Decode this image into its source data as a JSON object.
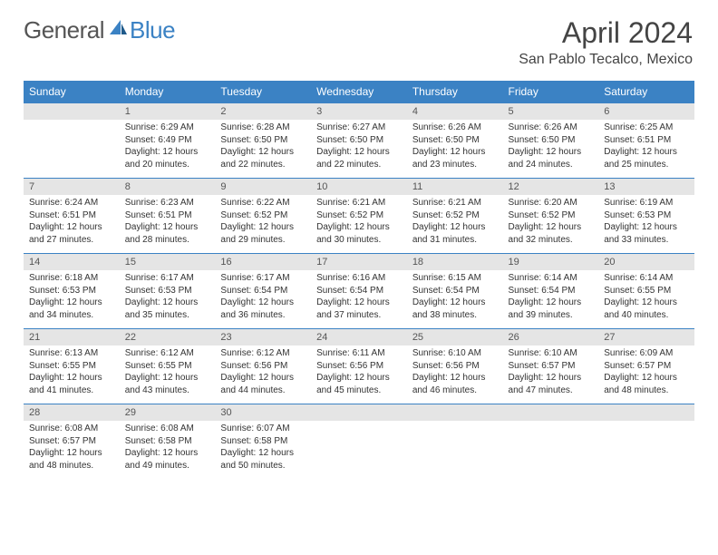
{
  "logo": {
    "general": "General",
    "blue": "Blue"
  },
  "title": "April 2024",
  "location": "San Pablo Tecalco, Mexico",
  "colors": {
    "header_bg": "#3b82c4",
    "header_text": "#ffffff",
    "daynum_bg": "#e5e5e5",
    "body_text": "#333333",
    "logo_blue": "#3b82c4",
    "logo_gray": "#555555"
  },
  "day_labels": [
    "Sunday",
    "Monday",
    "Tuesday",
    "Wednesday",
    "Thursday",
    "Friday",
    "Saturday"
  ],
  "weeks": [
    {
      "nums": [
        "",
        "1",
        "2",
        "3",
        "4",
        "5",
        "6"
      ],
      "cells": [
        null,
        {
          "sunrise": "6:29 AM",
          "sunset": "6:49 PM",
          "daylight": "12 hours and 20 minutes."
        },
        {
          "sunrise": "6:28 AM",
          "sunset": "6:50 PM",
          "daylight": "12 hours and 22 minutes."
        },
        {
          "sunrise": "6:27 AM",
          "sunset": "6:50 PM",
          "daylight": "12 hours and 22 minutes."
        },
        {
          "sunrise": "6:26 AM",
          "sunset": "6:50 PM",
          "daylight": "12 hours and 23 minutes."
        },
        {
          "sunrise": "6:26 AM",
          "sunset": "6:50 PM",
          "daylight": "12 hours and 24 minutes."
        },
        {
          "sunrise": "6:25 AM",
          "sunset": "6:51 PM",
          "daylight": "12 hours and 25 minutes."
        }
      ]
    },
    {
      "nums": [
        "7",
        "8",
        "9",
        "10",
        "11",
        "12",
        "13"
      ],
      "cells": [
        {
          "sunrise": "6:24 AM",
          "sunset": "6:51 PM",
          "daylight": "12 hours and 27 minutes."
        },
        {
          "sunrise": "6:23 AM",
          "sunset": "6:51 PM",
          "daylight": "12 hours and 28 minutes."
        },
        {
          "sunrise": "6:22 AM",
          "sunset": "6:52 PM",
          "daylight": "12 hours and 29 minutes."
        },
        {
          "sunrise": "6:21 AM",
          "sunset": "6:52 PM",
          "daylight": "12 hours and 30 minutes."
        },
        {
          "sunrise": "6:21 AM",
          "sunset": "6:52 PM",
          "daylight": "12 hours and 31 minutes."
        },
        {
          "sunrise": "6:20 AM",
          "sunset": "6:52 PM",
          "daylight": "12 hours and 32 minutes."
        },
        {
          "sunrise": "6:19 AM",
          "sunset": "6:53 PM",
          "daylight": "12 hours and 33 minutes."
        }
      ]
    },
    {
      "nums": [
        "14",
        "15",
        "16",
        "17",
        "18",
        "19",
        "20"
      ],
      "cells": [
        {
          "sunrise": "6:18 AM",
          "sunset": "6:53 PM",
          "daylight": "12 hours and 34 minutes."
        },
        {
          "sunrise": "6:17 AM",
          "sunset": "6:53 PM",
          "daylight": "12 hours and 35 minutes."
        },
        {
          "sunrise": "6:17 AM",
          "sunset": "6:54 PM",
          "daylight": "12 hours and 36 minutes."
        },
        {
          "sunrise": "6:16 AM",
          "sunset": "6:54 PM",
          "daylight": "12 hours and 37 minutes."
        },
        {
          "sunrise": "6:15 AM",
          "sunset": "6:54 PM",
          "daylight": "12 hours and 38 minutes."
        },
        {
          "sunrise": "6:14 AM",
          "sunset": "6:54 PM",
          "daylight": "12 hours and 39 minutes."
        },
        {
          "sunrise": "6:14 AM",
          "sunset": "6:55 PM",
          "daylight": "12 hours and 40 minutes."
        }
      ]
    },
    {
      "nums": [
        "21",
        "22",
        "23",
        "24",
        "25",
        "26",
        "27"
      ],
      "cells": [
        {
          "sunrise": "6:13 AM",
          "sunset": "6:55 PM",
          "daylight": "12 hours and 41 minutes."
        },
        {
          "sunrise": "6:12 AM",
          "sunset": "6:55 PM",
          "daylight": "12 hours and 43 minutes."
        },
        {
          "sunrise": "6:12 AM",
          "sunset": "6:56 PM",
          "daylight": "12 hours and 44 minutes."
        },
        {
          "sunrise": "6:11 AM",
          "sunset": "6:56 PM",
          "daylight": "12 hours and 45 minutes."
        },
        {
          "sunrise": "6:10 AM",
          "sunset": "6:56 PM",
          "daylight": "12 hours and 46 minutes."
        },
        {
          "sunrise": "6:10 AM",
          "sunset": "6:57 PM",
          "daylight": "12 hours and 47 minutes."
        },
        {
          "sunrise": "6:09 AM",
          "sunset": "6:57 PM",
          "daylight": "12 hours and 48 minutes."
        }
      ]
    },
    {
      "nums": [
        "28",
        "29",
        "30",
        "",
        "",
        "",
        ""
      ],
      "cells": [
        {
          "sunrise": "6:08 AM",
          "sunset": "6:57 PM",
          "daylight": "12 hours and 48 minutes."
        },
        {
          "sunrise": "6:08 AM",
          "sunset": "6:58 PM",
          "daylight": "12 hours and 49 minutes."
        },
        {
          "sunrise": "6:07 AM",
          "sunset": "6:58 PM",
          "daylight": "12 hours and 50 minutes."
        },
        null,
        null,
        null,
        null
      ]
    }
  ],
  "labels": {
    "sunrise": "Sunrise:",
    "sunset": "Sunset:",
    "daylight": "Daylight:"
  }
}
